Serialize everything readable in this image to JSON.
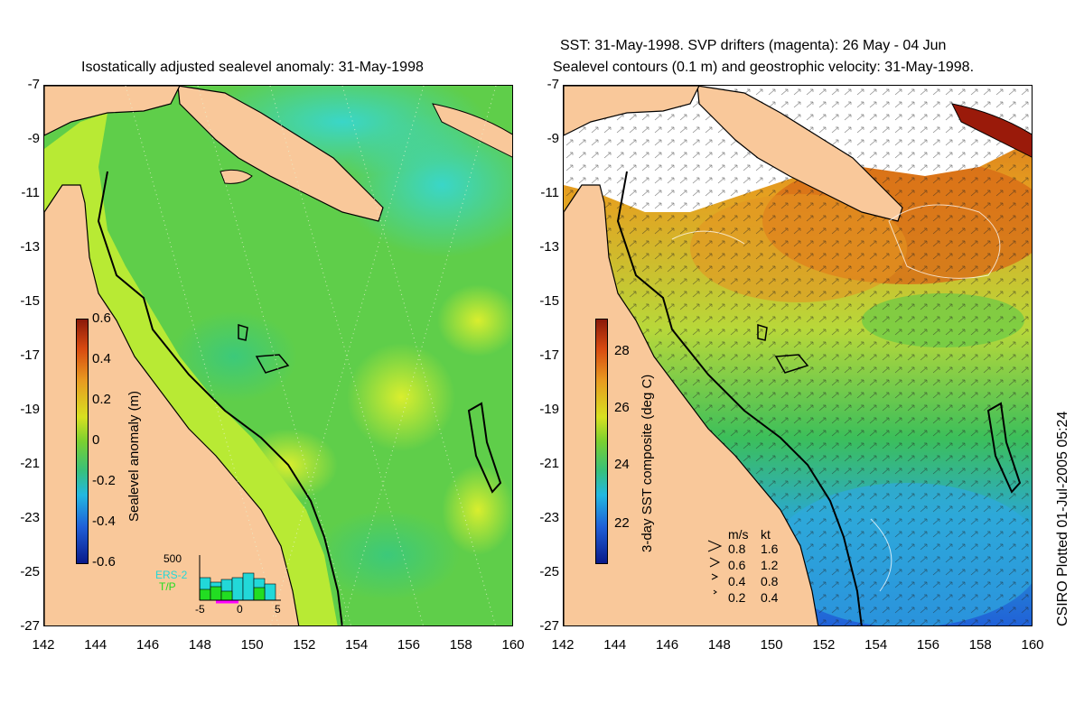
{
  "left_title": "Isostatically adjusted sealevel anomaly: 31-May-1998",
  "right_title_line1": "SST: 31-May-1998. SVP drifters (magenta): 26 May - 04 Jun",
  "right_title_line2": "Sealevel contours (0.1 m) and geostrophic velocity: 31-May-1998.",
  "y_ticks": [
    "-7",
    "-9",
    "-11",
    "-13",
    "-15",
    "-17",
    "-19",
    "-21",
    "-23",
    "-25",
    "-27"
  ],
  "x_ticks": [
    "142",
    "144",
    "146",
    "148",
    "150",
    "152",
    "154",
    "156",
    "158",
    "160"
  ],
  "left_colorbar": {
    "label": "Sealevel anomaly (m)",
    "ticks": [
      "0.6",
      "0.4",
      "0.2",
      "0",
      "-0.2",
      "-0.4",
      "-0.6"
    ]
  },
  "right_colorbar": {
    "label": "3-day SST composite (deg C)",
    "ticks": [
      "28",
      "26",
      "24",
      "22"
    ]
  },
  "histogram": {
    "ymax_label": "500",
    "x_ticks": [
      "-5",
      "0",
      "5"
    ],
    "legend": [
      "ERS-2",
      "T/P"
    ],
    "colors": [
      "#22d8d8",
      "#22dd22"
    ]
  },
  "velocity_legend": {
    "header_ms": "m/s",
    "header_kt": "kt",
    "rows": [
      {
        "ms": "0.8",
        "kt": "1.6"
      },
      {
        "ms": "0.6",
        "kt": "1.2"
      },
      {
        "ms": "0.4",
        "kt": "0.8"
      },
      {
        "ms": "0.2",
        "kt": "0.4"
      }
    ]
  },
  "credit": "CSIRO Plotted 01-Jul-2005 05:24",
  "colors": {
    "land": "#f9c89a",
    "sea_green": "#5fce4a",
    "sea_yellow": "#b8ea34",
    "sea_cyan": "#3fd7a6",
    "sst_orange": "#e2951c",
    "sst_blue": "#4aa3e8"
  }
}
